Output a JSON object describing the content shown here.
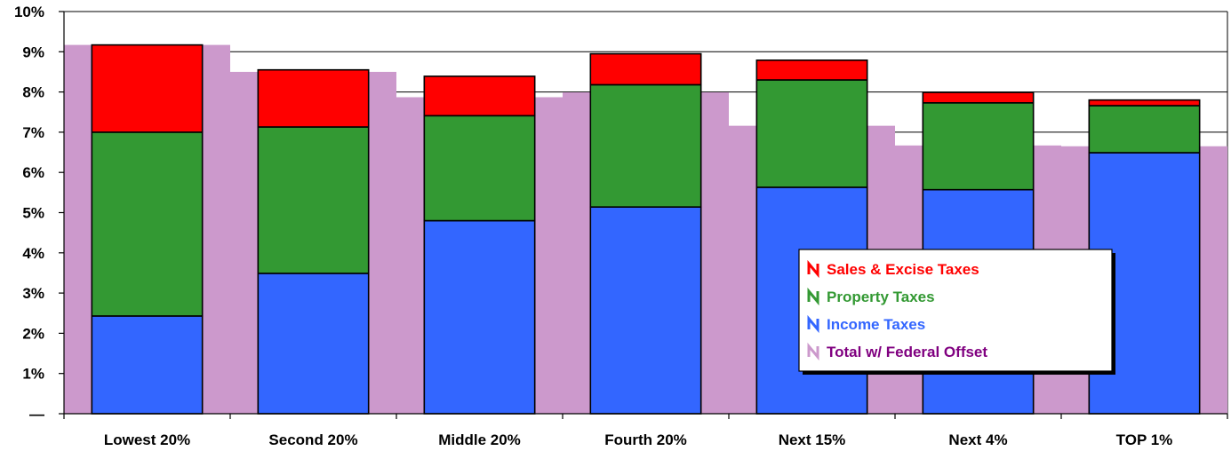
{
  "chart_data": {
    "type": "bar",
    "categories": [
      "Lowest 20%",
      "Second 20%",
      "Middle 20%",
      "Fourth 20%",
      "Next 15%",
      "Next 4%",
      "TOP 1%"
    ],
    "stack_series": [
      {
        "name": "Income Taxes",
        "color": "#3366FF",
        "values": [
          2.43,
          3.49,
          4.8,
          5.14,
          5.63,
          5.57,
          6.49
        ]
      },
      {
        "name": "Property Taxes",
        "color": "#339933",
        "values": [
          4.57,
          3.64,
          2.61,
          3.04,
          2.67,
          2.16,
          1.17
        ]
      },
      {
        "name": "Sales & Excise Taxes",
        "color": "#FF0000",
        "values": [
          2.17,
          1.42,
          0.98,
          0.77,
          0.49,
          0.26,
          0.14
        ]
      }
    ],
    "offset_series": {
      "name": "Total w/ Federal Offset",
      "color": "#CC99CC",
      "values": [
        9.17,
        8.5,
        7.87,
        7.99,
        7.16,
        6.67,
        6.65
      ]
    },
    "y_ticks": [
      "—",
      "1%",
      "2%",
      "3%",
      "4%",
      "5%",
      "6%",
      "7%",
      "8%",
      "9%",
      "10%"
    ],
    "ylim": [
      0,
      10
    ],
    "grid": true,
    "legend_position": "lower-right",
    "legend": [
      {
        "label": "Sales & Excise Taxes",
        "color": "#FF0000",
        "text_color": "#FF0000"
      },
      {
        "label": "Property Taxes",
        "color": "#339933",
        "text_color": "#339933"
      },
      {
        "label": "Income Taxes",
        "color": "#3366FF",
        "text_color": "#3366FF"
      },
      {
        "label": "Total w/ Federal Offset",
        "color": "#CC99CC",
        "text_color": "#800080"
      }
    ]
  }
}
